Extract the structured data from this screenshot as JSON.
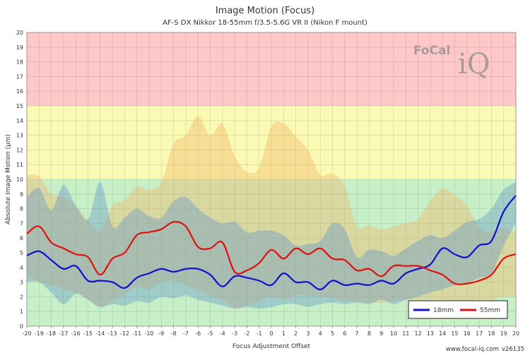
{
  "chart_data": {
    "type": "line",
    "title": "Image Motion (Focus)",
    "subtitle": "AF-S DX Nikkor 18-55mm f/3.5-5.6G VR II (Nikon F mount)",
    "xlabel": "Focus Adjustment Offset",
    "ylabel": "Absolute Image Motion (μm)",
    "xlim": [
      -20,
      20
    ],
    "ylim": [
      0,
      20
    ],
    "x_ticks": [
      -20,
      -19,
      -18,
      -17,
      -16,
      -15,
      -14,
      -13,
      -12,
      -11,
      -10,
      -9,
      -8,
      -7,
      -6,
      -5,
      -4,
      -3,
      -2,
      -1,
      0,
      1,
      2,
      3,
      4,
      5,
      6,
      7,
      8,
      9,
      10,
      11,
      12,
      13,
      14,
      15,
      16,
      17,
      18,
      19,
      20
    ],
    "y_ticks": [
      0,
      1,
      2,
      3,
      4,
      5,
      6,
      7,
      8,
      9,
      10,
      11,
      12,
      13,
      14,
      15,
      16,
      17,
      18,
      19,
      20
    ],
    "grid": true,
    "legend_position": "bottom-right",
    "zones": [
      {
        "name": "good",
        "from": 0,
        "to": 10,
        "color": "#c8f0c8"
      },
      {
        "name": "ok",
        "from": 10,
        "to": 15,
        "color": "#fafab4"
      },
      {
        "name": "bad",
        "from": 15,
        "to": 20,
        "color": "#ffc8c8"
      }
    ],
    "series": [
      {
        "name": "18mm",
        "color": "#1010d0",
        "band_color": "#6496c8",
        "x": [
          -20,
          -19,
          -18,
          -17,
          -16,
          -15,
          -14,
          -13,
          -12,
          -11,
          -10,
          -9,
          -8,
          -7,
          -6,
          -5,
          -4,
          -3,
          -2,
          -1,
          0,
          1,
          2,
          3,
          4,
          5,
          6,
          7,
          8,
          9,
          10,
          11,
          12,
          13,
          14,
          15,
          16,
          17,
          18,
          19,
          20
        ],
        "values": [
          4.8,
          5.1,
          4.5,
          3.9,
          4.1,
          3.1,
          3.1,
          3.0,
          2.6,
          3.3,
          3.6,
          3.9,
          3.7,
          3.9,
          3.9,
          3.5,
          2.7,
          3.4,
          3.3,
          3.1,
          2.8,
          3.6,
          3.0,
          3.0,
          2.5,
          3.1,
          2.8,
          2.9,
          2.8,
          3.1,
          2.9,
          3.6,
          3.9,
          4.2,
          5.3,
          4.9,
          4.7,
          5.5,
          5.8,
          7.8,
          8.9
        ],
        "band_low": [
          3.0,
          3.0,
          2.3,
          1.5,
          2.2,
          1.8,
          1.3,
          1.5,
          1.4,
          1.7,
          1.6,
          2.0,
          1.9,
          2.1,
          1.8,
          1.6,
          1.4,
          1.2,
          1.3,
          1.2,
          1.3,
          1.5,
          1.5,
          1.3,
          1.5,
          1.6,
          1.5,
          1.6,
          1.5,
          1.8,
          1.5,
          1.8,
          2.0,
          2.3,
          2.5,
          2.8,
          2.9,
          3.3,
          3.6,
          5.5,
          7.0
        ],
        "band_high": [
          8.8,
          9.4,
          7.9,
          9.6,
          8.2,
          7.3,
          9.8,
          6.8,
          7.4,
          8.0,
          7.5,
          7.4,
          8.5,
          8.8,
          8.0,
          7.4,
          7.0,
          7.1,
          6.4,
          6.5,
          6.5,
          6.2,
          5.5,
          5.6,
          5.8,
          7.0,
          6.6,
          4.7,
          5.2,
          5.1,
          4.8,
          5.3,
          5.8,
          6.2,
          6.0,
          6.5,
          7.1,
          7.3,
          8.0,
          9.3,
          9.8
        ]
      },
      {
        "name": "55mm",
        "color": "#e01010",
        "band_color": "#f0b464",
        "x": [
          -20,
          -19,
          -18,
          -17,
          -16,
          -15,
          -14,
          -13,
          -12,
          -11,
          -10,
          -9,
          -8,
          -7,
          -6,
          -5,
          -4,
          -3,
          -2,
          -1,
          0,
          1,
          2,
          3,
          4,
          5,
          6,
          7,
          8,
          9,
          10,
          11,
          12,
          13,
          14,
          15,
          16,
          17,
          18,
          19,
          20
        ],
        "values": [
          6.3,
          6.8,
          5.7,
          5.3,
          4.9,
          4.7,
          3.5,
          4.6,
          5.0,
          6.2,
          6.4,
          6.6,
          7.1,
          6.8,
          5.4,
          5.3,
          5.7,
          3.7,
          3.8,
          4.3,
          5.2,
          4.6,
          5.3,
          4.9,
          5.3,
          4.6,
          4.5,
          3.8,
          3.9,
          3.4,
          4.1,
          4.1,
          4.1,
          3.8,
          3.5,
          2.9,
          2.9,
          3.1,
          3.5,
          4.6,
          4.9
        ],
        "band_low": [
          3.5,
          3.0,
          2.8,
          2.5,
          2.3,
          1.8,
          1.3,
          1.8,
          2.2,
          2.7,
          2.5,
          3.0,
          3.1,
          2.8,
          2.4,
          2.1,
          1.8,
          1.2,
          1.4,
          1.7,
          2.0,
          1.8,
          2.1,
          2.1,
          2.0,
          1.9,
          1.7,
          1.7,
          1.6,
          1.6,
          1.7,
          1.8,
          1.8,
          1.8,
          1.8,
          1.7,
          1.7,
          1.8,
          1.8,
          2.0,
          2.0
        ],
        "band_high": [
          10.3,
          10.2,
          9.0,
          8.8,
          8.2,
          7.2,
          6.5,
          8.2,
          8.6,
          9.5,
          9.3,
          9.8,
          12.4,
          13.0,
          14.3,
          13.0,
          13.8,
          11.6,
          10.5,
          10.8,
          13.6,
          13.8,
          12.9,
          12.0,
          10.3,
          10.4,
          9.5,
          6.8,
          6.9,
          6.6,
          6.8,
          7.0,
          7.3,
          8.5,
          9.4,
          8.9,
          8.2,
          6.7,
          6.4,
          6.7,
          6.4
        ]
      }
    ]
  },
  "logo": {
    "text": "FoCal",
    "mark": "iQ"
  },
  "footer": {
    "site": "www.focal-iq.com",
    "version": "v26135"
  }
}
